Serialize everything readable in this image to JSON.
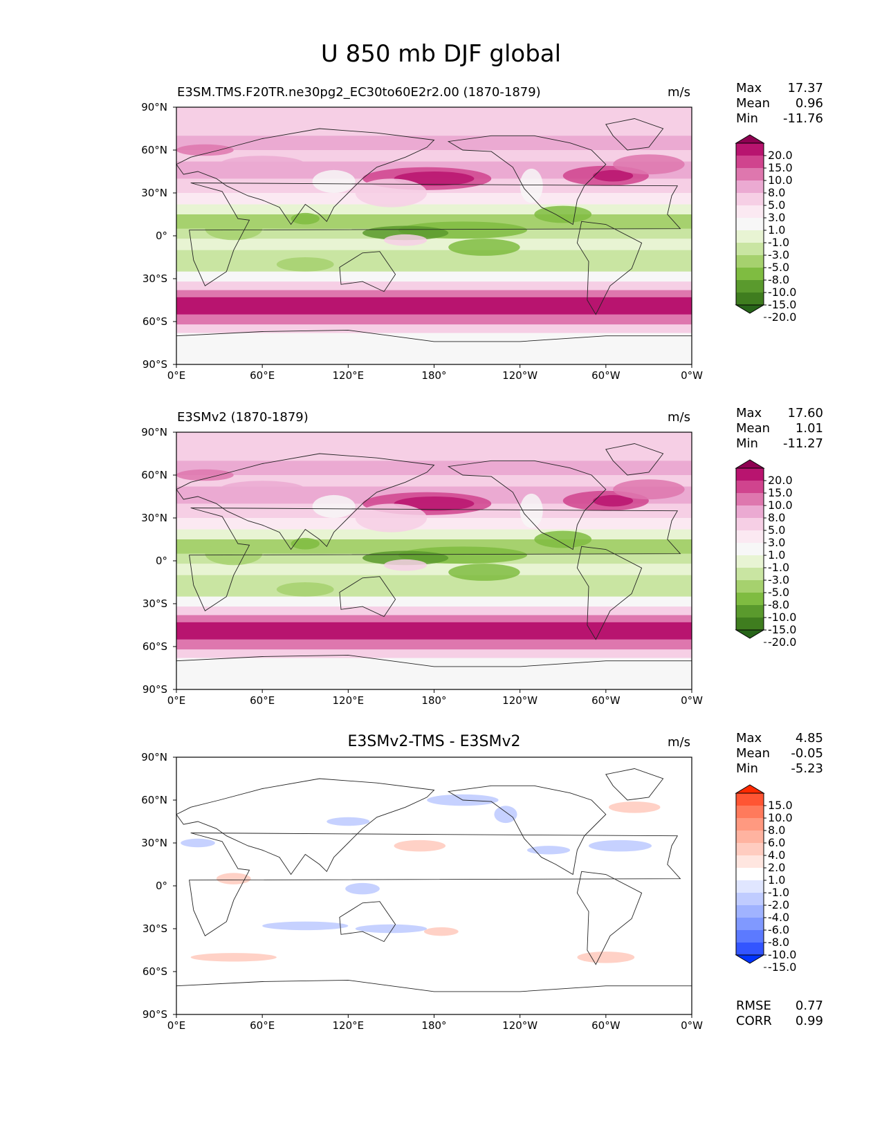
{
  "figure": {
    "title": "U 850 mb DJF global"
  },
  "panels": [
    {
      "left_title": "E3SM.TMS.F20TR.ne30pg2_EC30to60E2r2.00 (1870-1879)",
      "center_title": "",
      "units": "m/s",
      "stats": [
        {
          "label": "Max",
          "value": "17.37"
        },
        {
          "label": "Mean",
          "value": "0.96"
        },
        {
          "label": "Min",
          "value": "-11.76"
        }
      ],
      "colorbar": {
        "levels": [
          "20.0",
          "15.0",
          "10.0",
          "8.0",
          "5.0",
          "3.0",
          "1.0",
          "-1.0",
          "-3.0",
          "-5.0",
          "-8.0",
          "-10.0",
          "-15.0",
          "-20.0"
        ],
        "colors": [
          "#8e0152",
          "#b8146f",
          "#d0448e",
          "#de77ae",
          "#ebaad2",
          "#f6cfe5",
          "#fbe9f2",
          "#f7f7f7",
          "#e8f4d3",
          "#c9e5a2",
          "#a6d16e",
          "#7fbc41",
          "#5a9a2d",
          "#3f7d1f",
          "#276419"
        ]
      },
      "x_ticks": [
        "0°E",
        "60°E",
        "120°E",
        "180°",
        "120°W",
        "60°W",
        "0°W"
      ],
      "y_ticks": [
        "90°N",
        "60°N",
        "30°N",
        "0°",
        "30°S",
        "60°S",
        "90°S"
      ]
    },
    {
      "left_title": "E3SMv2 (1870-1879)",
      "center_title": "",
      "units": "m/s",
      "stats": [
        {
          "label": "Max",
          "value": "17.60"
        },
        {
          "label": "Mean",
          "value": "1.01"
        },
        {
          "label": "Min",
          "value": "-11.27"
        }
      ],
      "colorbar": {
        "levels": [
          "20.0",
          "15.0",
          "10.0",
          "8.0",
          "5.0",
          "3.0",
          "1.0",
          "-1.0",
          "-3.0",
          "-5.0",
          "-8.0",
          "-10.0",
          "-15.0",
          "-20.0"
        ],
        "colors": [
          "#8e0152",
          "#b8146f",
          "#d0448e",
          "#de77ae",
          "#ebaad2",
          "#f6cfe5",
          "#fbe9f2",
          "#f7f7f7",
          "#e8f4d3",
          "#c9e5a2",
          "#a6d16e",
          "#7fbc41",
          "#5a9a2d",
          "#3f7d1f",
          "#276419"
        ]
      },
      "x_ticks": [
        "0°E",
        "60°E",
        "120°E",
        "180°",
        "120°W",
        "60°W",
        "0°W"
      ],
      "y_ticks": [
        "90°N",
        "60°N",
        "30°N",
        "0°",
        "30°S",
        "60°S",
        "90°S"
      ]
    },
    {
      "left_title": "",
      "center_title": "E3SMv2-TMS - E3SMv2",
      "units": "m/s",
      "stats": [
        {
          "label": "Max",
          "value": "4.85"
        },
        {
          "label": "Mean",
          "value": "-0.05"
        },
        {
          "label": "Min",
          "value": "-5.23"
        }
      ],
      "metrics": [
        {
          "label": "RMSE",
          "value": "0.77"
        },
        {
          "label": "CORR",
          "value": "0.99"
        }
      ],
      "colorbar": {
        "levels": [
          "15.0",
          "10.0",
          "8.0",
          "6.0",
          "4.0",
          "2.0",
          "1.0",
          "-1.0",
          "-2.0",
          "-4.0",
          "-6.0",
          "-8.0",
          "-10.0",
          "-15.0"
        ],
        "colors": [
          "#ff2a00",
          "#ff5533",
          "#ff7a5c",
          "#ff9980",
          "#ffb3a0",
          "#ffccc0",
          "#ffe6e0",
          "#ffffff",
          "#e0e6ff",
          "#c0ccff",
          "#a0b3ff",
          "#8099ff",
          "#5c7aff",
          "#3355ff",
          "#0033ff"
        ]
      },
      "x_ticks": [
        "0°E",
        "60°E",
        "120°E",
        "180°",
        "120°W",
        "60°W",
        "0°W"
      ],
      "y_ticks": [
        "90°N",
        "60°N",
        "30°N",
        "0°",
        "30°S",
        "60°S",
        "90°S"
      ]
    }
  ]
}
